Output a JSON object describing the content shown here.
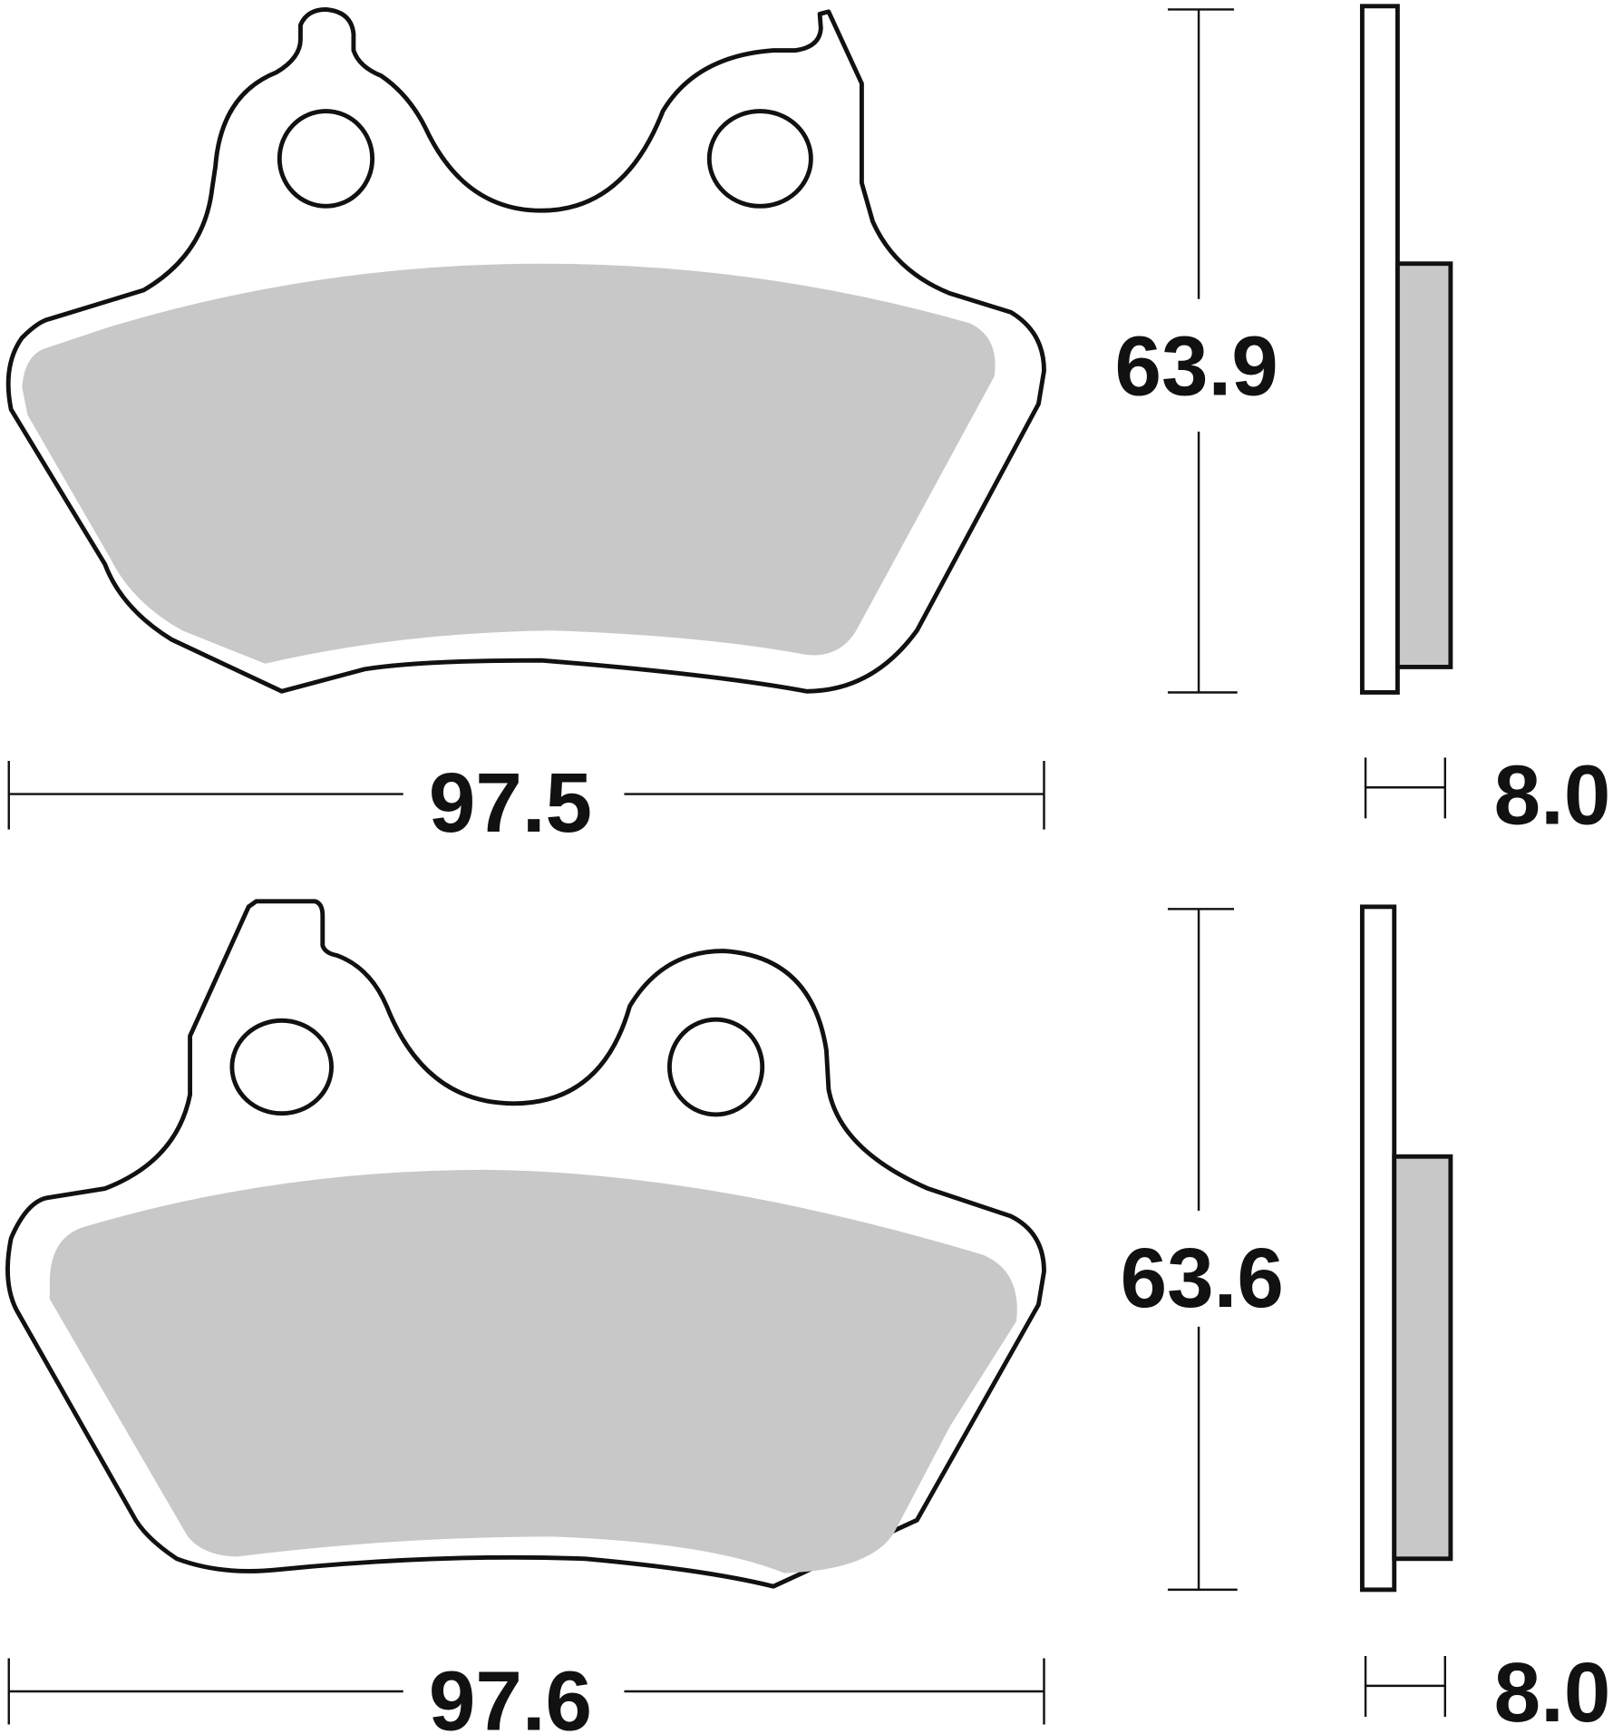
{
  "pads": [
    {
      "width": "97.5",
      "height": "63.9",
      "thickness": "8.0"
    },
    {
      "width": "97.6",
      "height": "63.6",
      "thickness": "8.0"
    }
  ],
  "colors": {
    "friction": "#c8c8c8",
    "outline": "#111111"
  }
}
